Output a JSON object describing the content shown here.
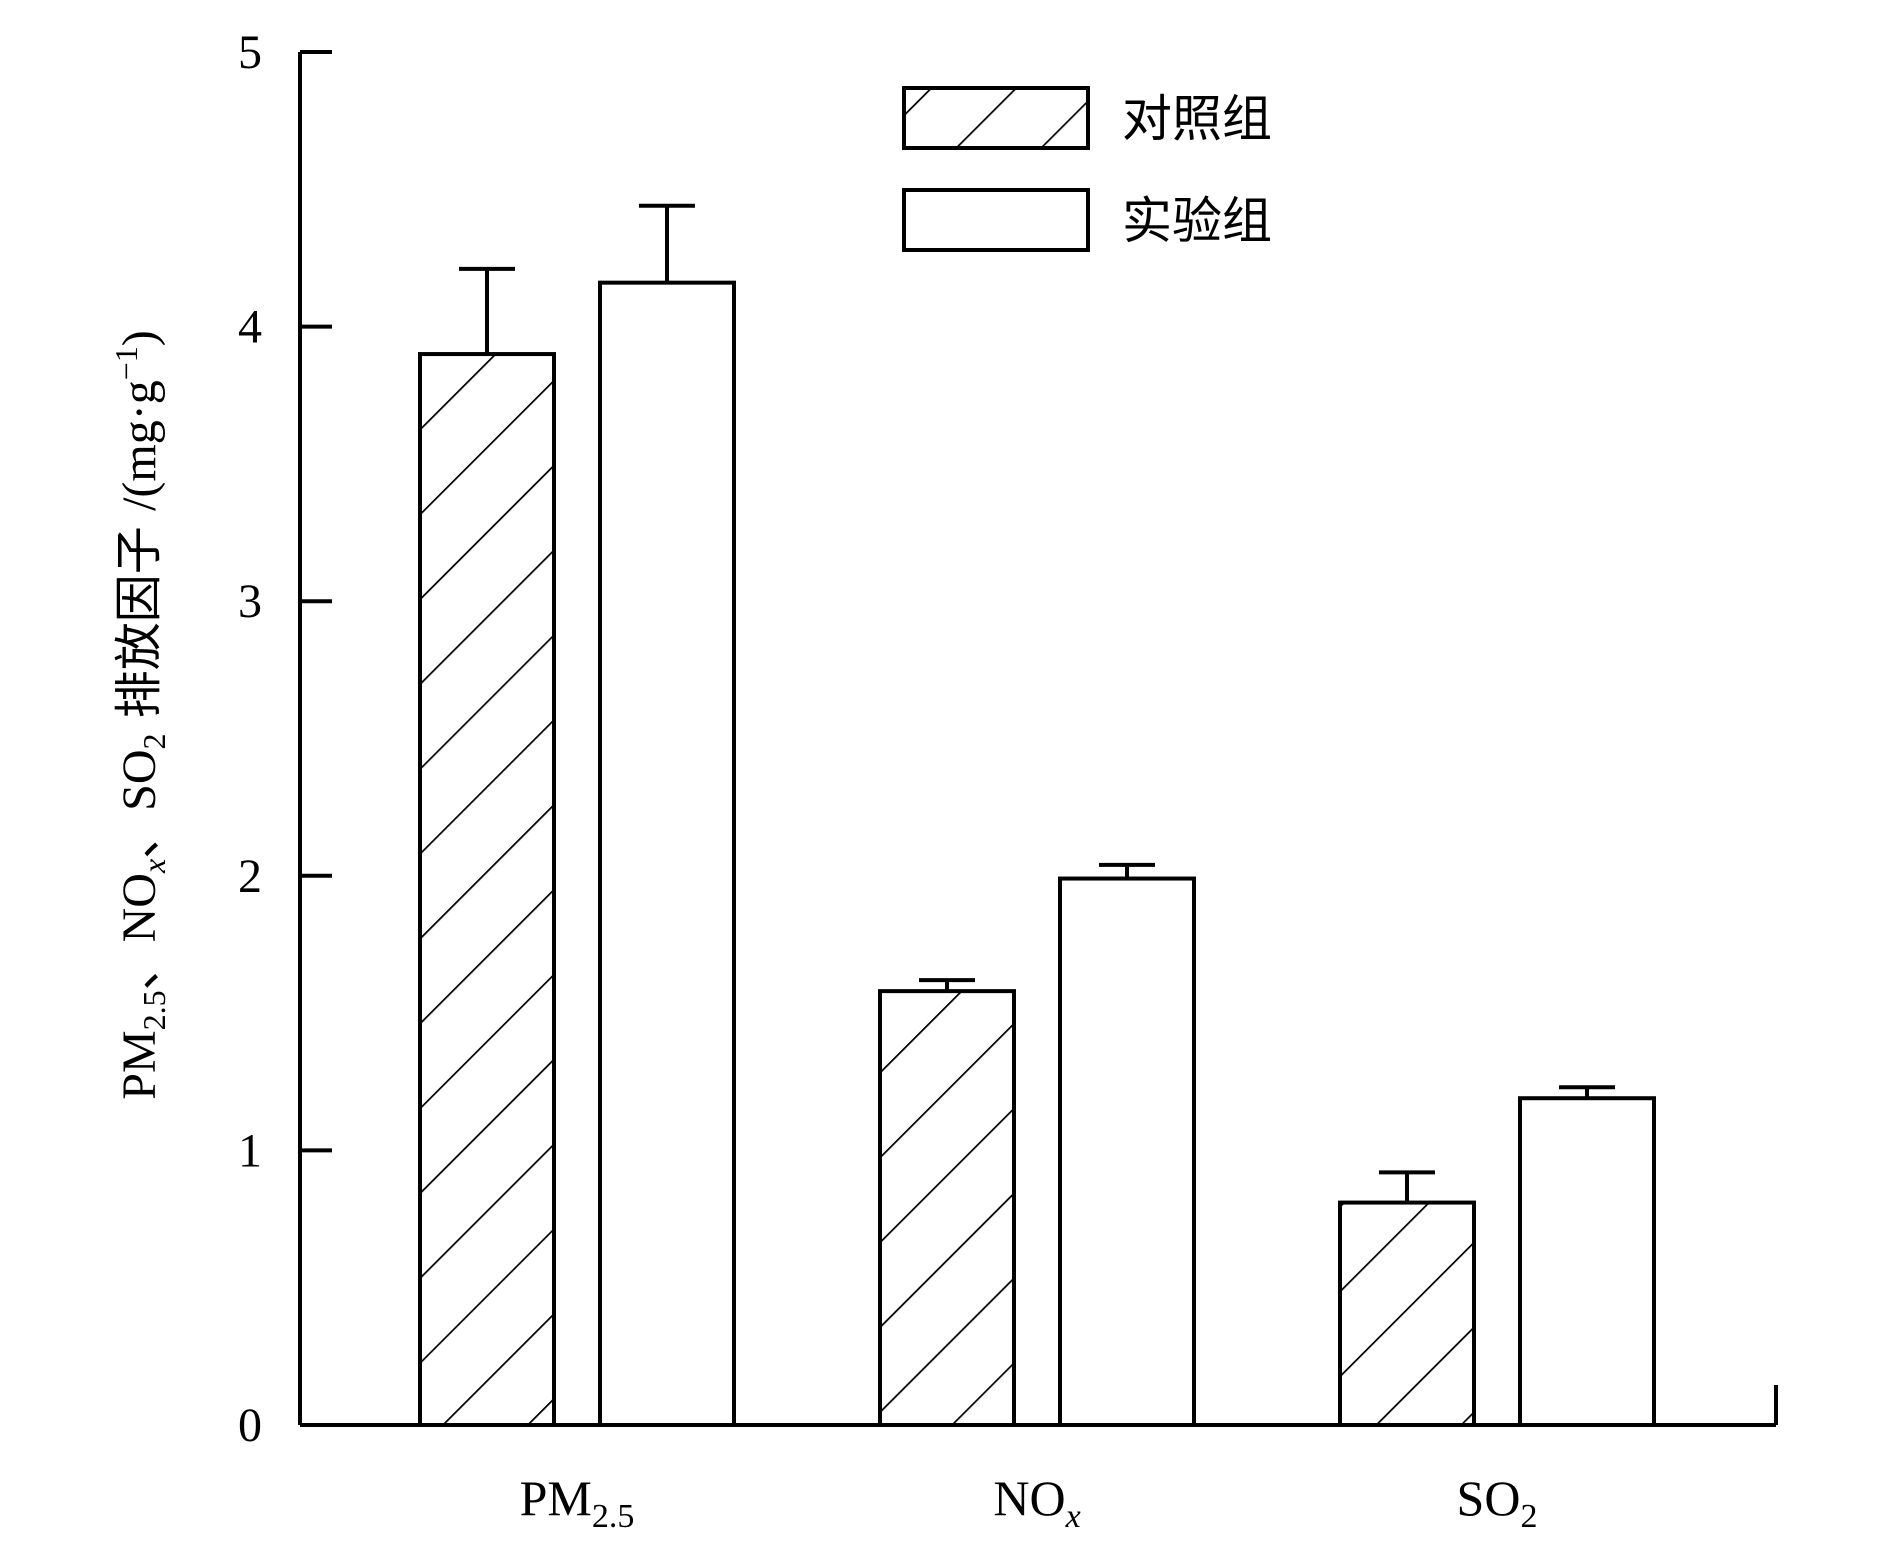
{
  "chart_data": {
    "type": "bar",
    "categories": [
      {
        "main": "PM",
        "sub": "2.5",
        "sub_italic": false
      },
      {
        "main": "NO",
        "sub": "x",
        "sub_italic": true
      },
      {
        "main": "SO",
        "sub": "2",
        "sub_italic": false
      }
    ],
    "series": [
      {
        "name": "对照组",
        "pattern": "hatch",
        "values": [
          3.9,
          1.58,
          0.81
        ],
        "errors": [
          0.31,
          0.04,
          0.11
        ]
      },
      {
        "name": "实验组",
        "pattern": "none",
        "values": [
          4.16,
          1.99,
          1.19
        ],
        "errors": [
          0.28,
          0.05,
          0.04
        ]
      }
    ],
    "ylim": [
      0,
      5
    ],
    "yticks": [
      "0",
      "1",
      "2",
      "3",
      "4",
      "5"
    ],
    "ylabel_parts": {
      "pm": "PM",
      "pm_sub": "2.5",
      "sep1": "、",
      "no": "NO",
      "no_sub": "x",
      "sep2": "、",
      "so": "SO",
      "so_sub": "2",
      "cjk": " 排放因子 ",
      "unit_open": "/(mg·g",
      "unit_sup": "−1",
      "unit_close": ")"
    },
    "legend_position": "top-center",
    "grid": false
  }
}
